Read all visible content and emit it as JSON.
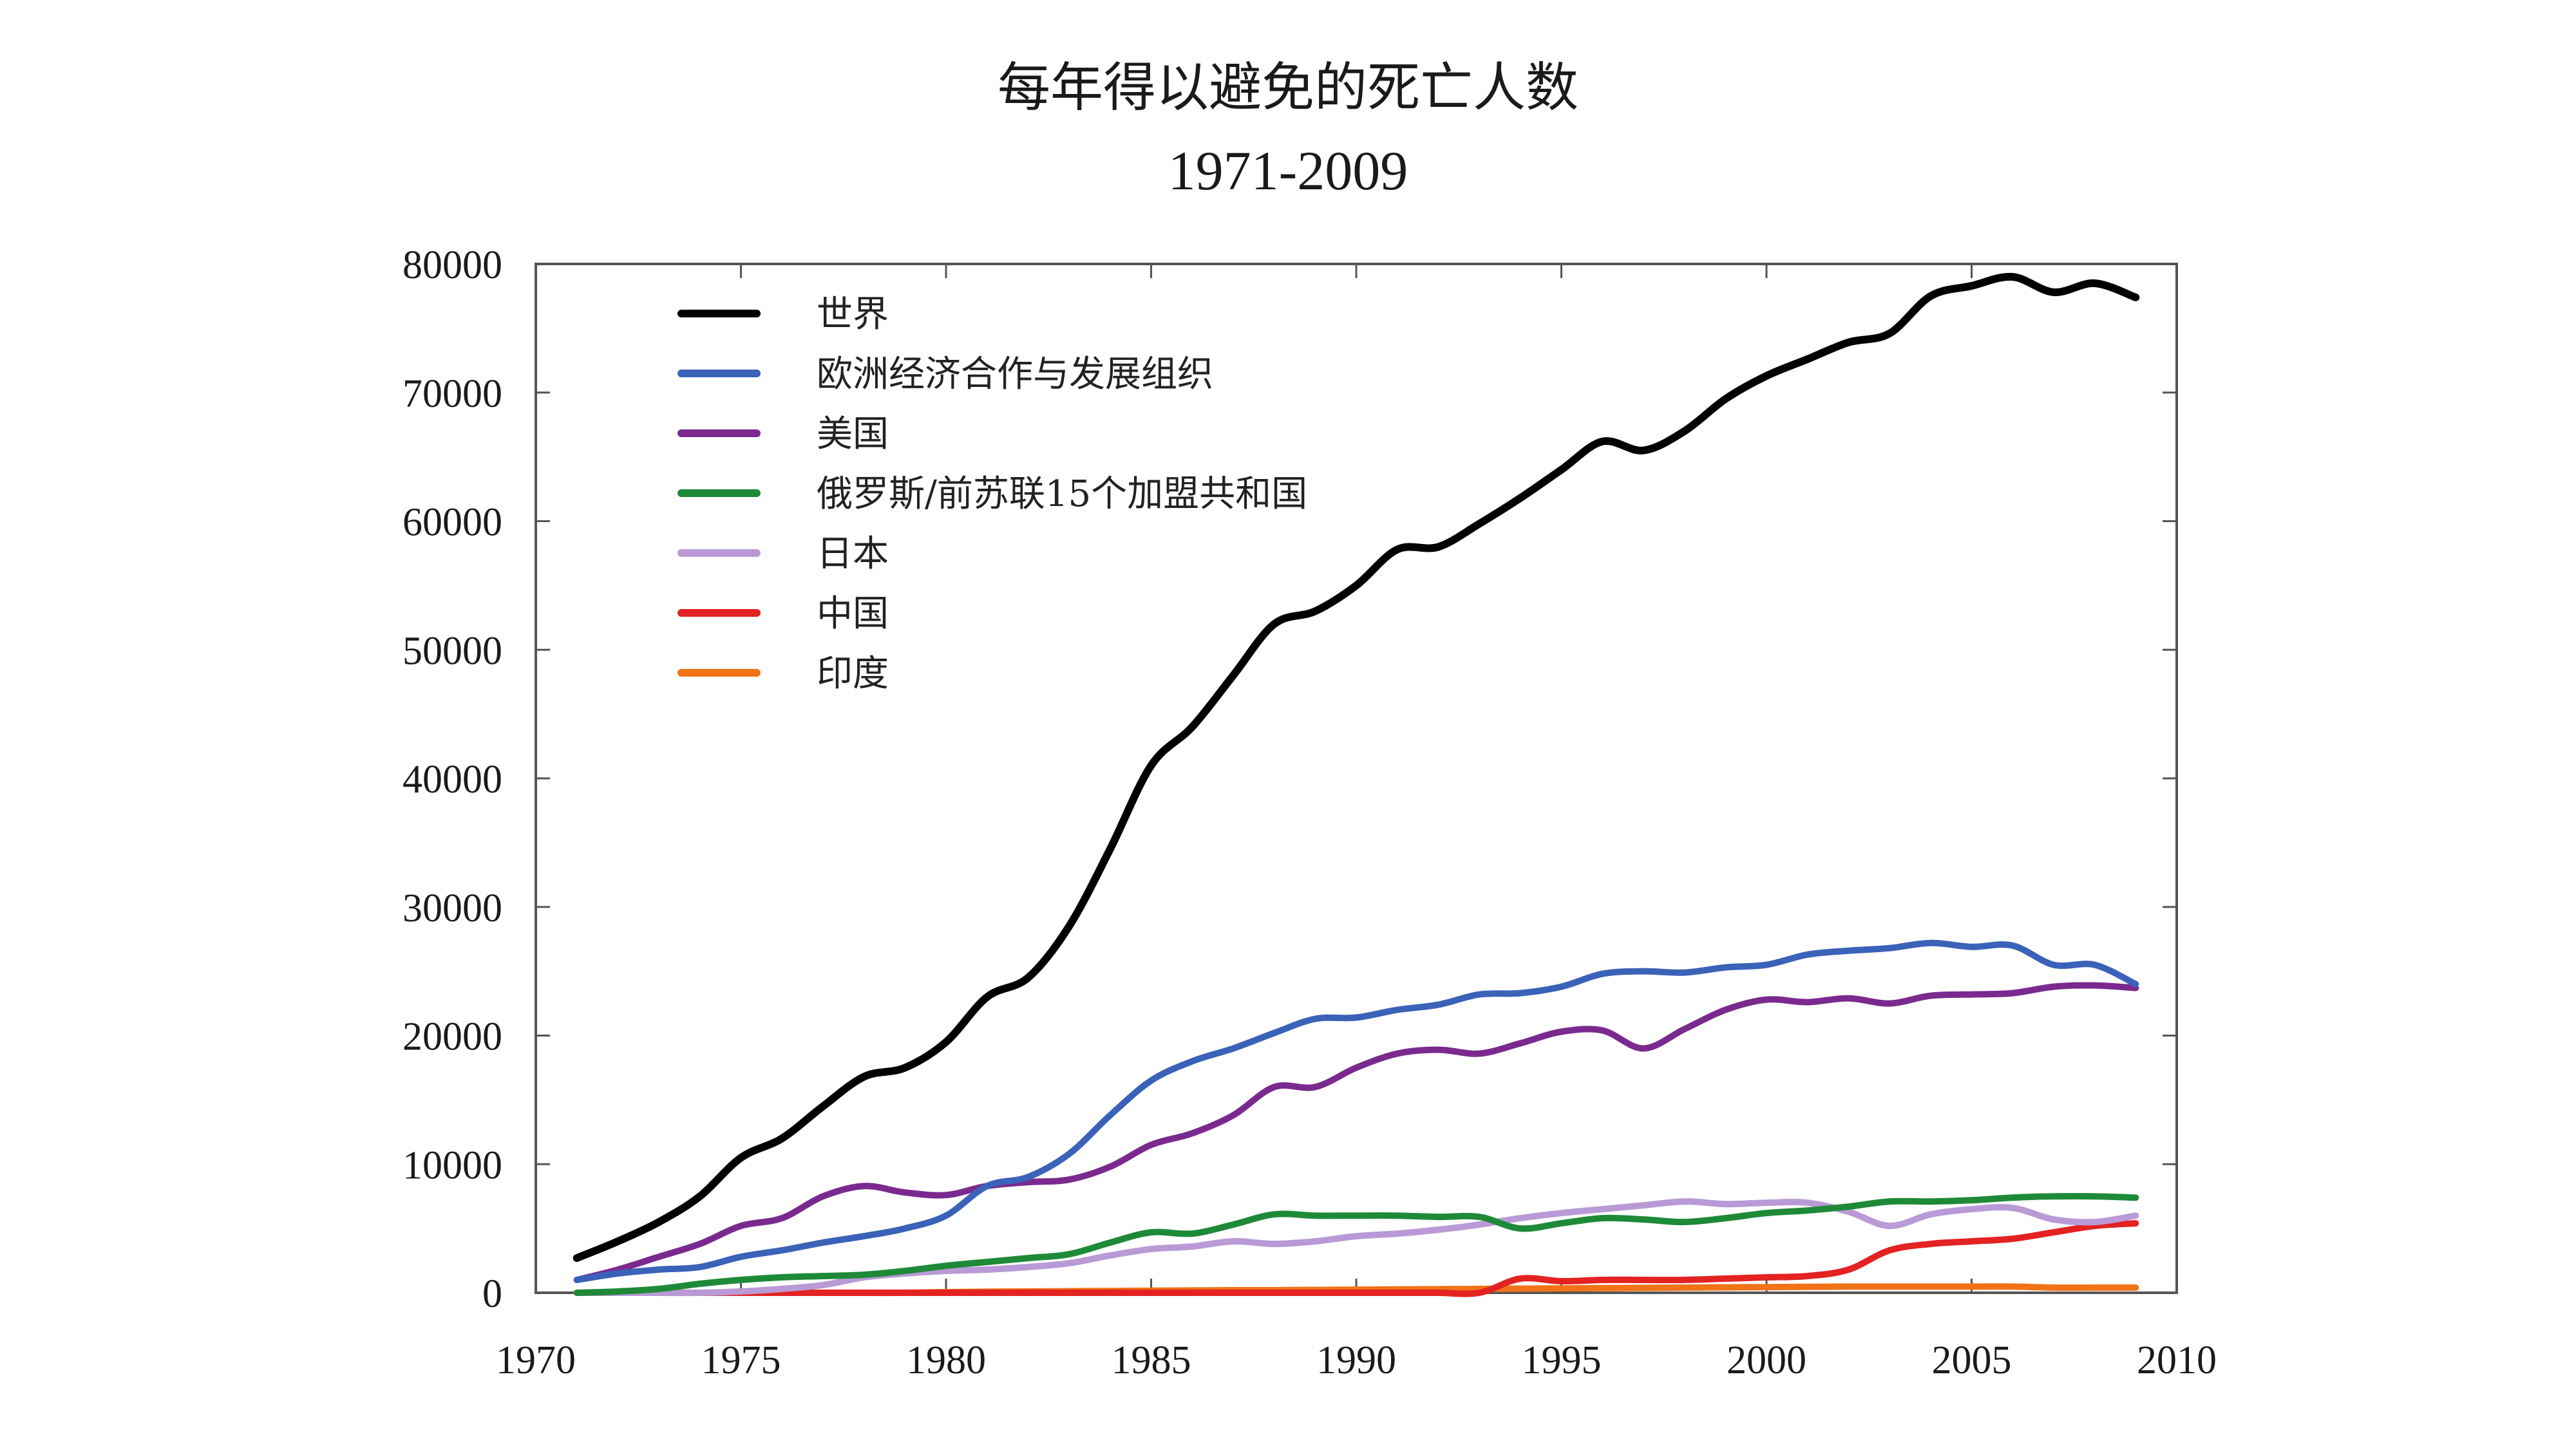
{
  "title": "每年得以避免的死亡人数",
  "subtitle": "1971-2009",
  "chart_data": {
    "type": "line",
    "title": "每年得以避免的死亡人数",
    "subtitle": "1971-2009",
    "xlabel": "",
    "ylabel": "",
    "xlim": [
      1970,
      2010
    ],
    "ylim": [
      0,
      80000
    ],
    "x_ticks": [
      1970,
      1975,
      1980,
      1985,
      1990,
      1995,
      2000,
      2005,
      2010
    ],
    "y_ticks": [
      0,
      10000,
      20000,
      30000,
      40000,
      50000,
      60000,
      70000,
      80000
    ],
    "x": [
      1971,
      1972,
      1973,
      1974,
      1975,
      1976,
      1977,
      1978,
      1979,
      1980,
      1981,
      1982,
      1983,
      1984,
      1985,
      1986,
      1987,
      1988,
      1989,
      1990,
      1991,
      1992,
      1993,
      1994,
      1995,
      1996,
      1997,
      1998,
      1999,
      2000,
      2001,
      2002,
      2003,
      2004,
      2005,
      2006,
      2007,
      2008,
      2009
    ],
    "legend_position": "top-left",
    "grid": false,
    "series": [
      {
        "name": "世界",
        "color": "#000000",
        "values": [
          2700,
          4000,
          5500,
          7500,
          10500,
          12000,
          14500,
          16800,
          17500,
          19500,
          23000,
          24500,
          28500,
          34500,
          41000,
          44000,
          48000,
          52000,
          53000,
          55000,
          57800,
          58000,
          59800,
          61800,
          64000,
          66200,
          65500,
          67000,
          69500,
          71300,
          72600,
          73900,
          74600,
          77500,
          78300,
          79000,
          77800,
          78500,
          77400
        ]
      },
      {
        "name": "欧洲经济合作与发展组织",
        "color": "#3a62b8",
        "values": [
          1000,
          1500,
          1800,
          2000,
          2800,
          3300,
          3900,
          4400,
          5000,
          6000,
          8300,
          9000,
          10800,
          13800,
          16500,
          18000,
          19000,
          20200,
          21300,
          21400,
          22000,
          22400,
          23200,
          23300,
          23800,
          24800,
          25000,
          24900,
          25300,
          25500,
          26300,
          26600,
          26800,
          27200,
          26900,
          27000,
          25500,
          25500,
          24000
        ]
      },
      {
        "name": "美国",
        "color": "#7a2a8e",
        "values": [
          1000,
          1800,
          2800,
          3800,
          5200,
          5800,
          7500,
          8300,
          7800,
          7600,
          8300,
          8600,
          8800,
          9800,
          11500,
          12400,
          13800,
          16000,
          16000,
          17500,
          18600,
          18900,
          18600,
          19400,
          20300,
          20400,
          19000,
          20500,
          22000,
          22800,
          22600,
          22900,
          22500,
          23100,
          23200,
          23300,
          23800,
          23900,
          23700
        ]
      },
      {
        "name": "俄罗斯/前苏联15个加盟共和国",
        "color": "#1e8a38",
        "values": [
          0,
          100,
          300,
          700,
          1000,
          1200,
          1300,
          1400,
          1700,
          2100,
          2400,
          2700,
          3000,
          3900,
          4700,
          4600,
          5300,
          6100,
          6000,
          6000,
          6000,
          5900,
          5900,
          5000,
          5400,
          5800,
          5700,
          5500,
          5800,
          6200,
          6400,
          6700,
          7100,
          7100,
          7200,
          7400,
          7500,
          7500,
          7400
        ]
      },
      {
        "name": "日本",
        "color": "#b99ad6",
        "values": [
          0,
          0,
          0,
          0,
          100,
          300,
          600,
          1200,
          1500,
          1700,
          1800,
          2000,
          2300,
          2900,
          3400,
          3600,
          4000,
          3800,
          4000,
          4400,
          4600,
          4900,
          5300,
          5800,
          6200,
          6500,
          6800,
          7100,
          6900,
          7000,
          7000,
          6300,
          5200,
          6100,
          6500,
          6600,
          5700,
          5500,
          6000
        ]
      },
      {
        "name": "中国",
        "color": "#e32222",
        "values": [
          0,
          0,
          0,
          0,
          0,
          0,
          0,
          0,
          0,
          0,
          0,
          0,
          0,
          0,
          0,
          0,
          0,
          0,
          0,
          0,
          0,
          0,
          0,
          1100,
          900,
          1000,
          1000,
          1000,
          1100,
          1200,
          1300,
          1800,
          3300,
          3800,
          4000,
          4200,
          4700,
          5200,
          5400
        ]
      },
      {
        "name": "印度",
        "color": "#f07318",
        "values": [
          0,
          0,
          0,
          0,
          0,
          0,
          0,
          0,
          0,
          50,
          80,
          100,
          120,
          140,
          160,
          180,
          200,
          200,
          220,
          240,
          260,
          280,
          300,
          320,
          340,
          360,
          380,
          400,
          420,
          440,
          460,
          480,
          480,
          480,
          480,
          480,
          400,
          400,
          400
        ]
      }
    ]
  }
}
